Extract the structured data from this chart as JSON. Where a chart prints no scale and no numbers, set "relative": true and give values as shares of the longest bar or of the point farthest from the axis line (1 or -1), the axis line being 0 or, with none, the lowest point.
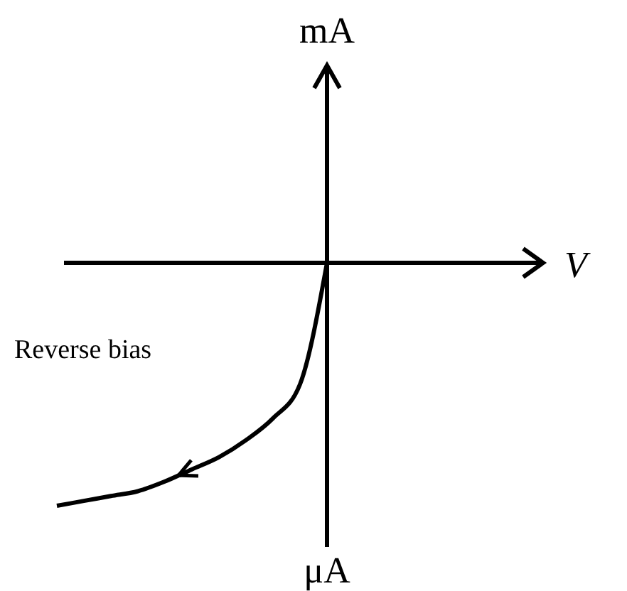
{
  "chart_data": {
    "type": "line",
    "relative": true,
    "xlabel": "V",
    "annotations": [
      "mA",
      "Reverse bias",
      "μA"
    ],
    "categories": [
      null,
      null,
      null,
      null,
      null,
      null,
      null,
      null,
      null,
      null,
      null,
      null,
      null,
      null,
      null,
      null,
      null,
      null,
      null
    ],
    "series": [
      {
        "color": "#000000",
        "values": [
          -1,
          -0.98,
          -0.96,
          -0.94,
          -0.9,
          -0.85,
          -0.8,
          -0.73,
          -0.64,
          -0.5,
          0,
          null,
          null,
          null,
          null,
          null,
          null,
          null,
          null
        ]
      }
    ]
  }
}
